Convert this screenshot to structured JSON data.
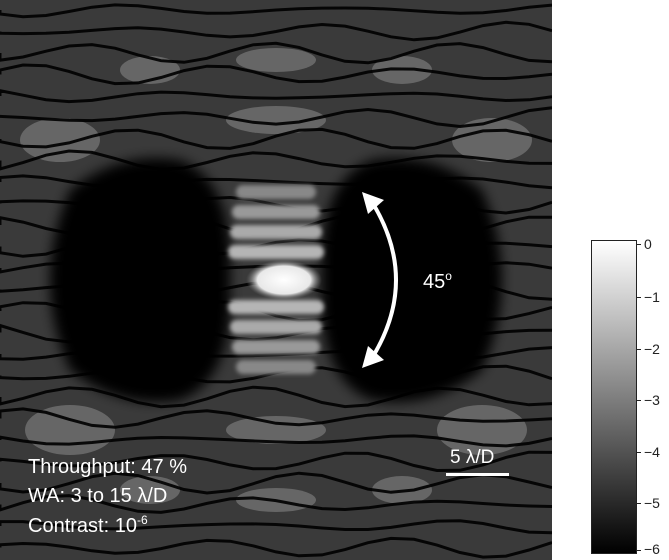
{
  "annotations": {
    "angle_value": "45",
    "angle_unit": "o",
    "throughput": "Throughput: 47 %",
    "wa": "WA: 3 to 15 λ/D",
    "contrast_prefix": "Contrast: 10",
    "contrast_exp": "-6",
    "scalebar": "5 λ/D"
  },
  "colorbar": {
    "labels": [
      "0",
      "−1",
      "−2",
      "−3",
      "−4",
      "−5",
      "−6"
    ],
    "gradient_top": "#ffffff",
    "gradient_bottom": "#000000"
  },
  "colors": {
    "background": "#050505",
    "annotation": "#ffffff"
  }
}
